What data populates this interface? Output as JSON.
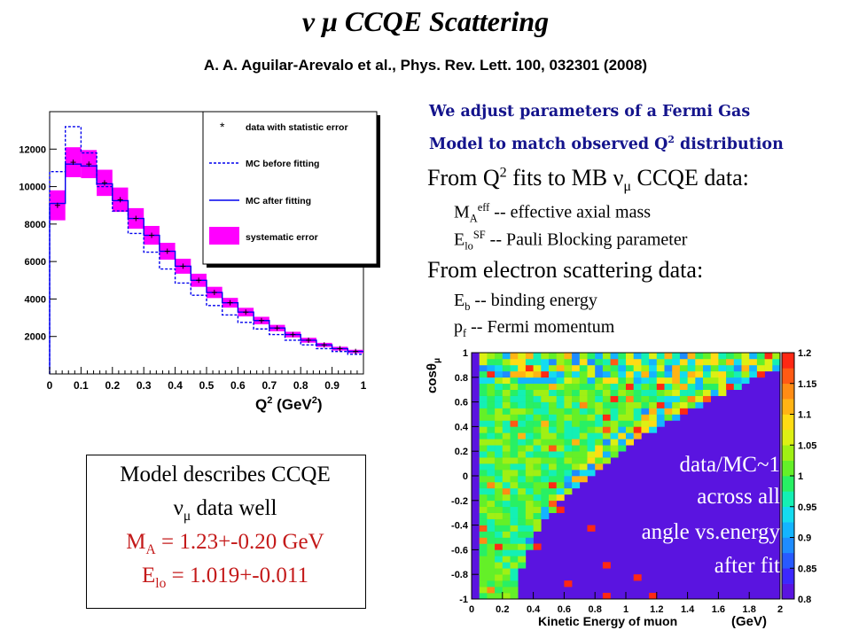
{
  "header": {
    "title": "ν μ CCQE Scattering",
    "reference": "A. A. Aguilar-Arevalo et al., Phys. Rev. Lett. 100, 032301 (2008)"
  },
  "text_panel": {
    "intro_line1": "We adjust parameters of a Fermi Gas",
    "intro_line2_pre": "Model to match observed Q",
    "intro_line2_sup": "2",
    "intro_line2_post": " distribution",
    "fits_pre": "From Q",
    "fits_sup": "2",
    "fits_mid": " fits to MB ν",
    "fits_sub": "μ",
    "fits_post": " CCQE data:",
    "ma_sym": "M",
    "ma_sub": "A",
    "ma_sup": "eff",
    "ma_desc": " -- effective axial mass",
    "elo_sym": "E",
    "elo_sub": "lo",
    "elo_sup": "SF",
    "elo_desc": " -- Pauli Blocking parameter",
    "electron_heading": "From electron scattering data:",
    "eb_sym": "E",
    "eb_sub": "b",
    "eb_desc": " -- binding energy",
    "pf_sym": "p",
    "pf_sub": "f",
    "pf_desc": " -- Fermi momentum"
  },
  "model_box": {
    "line1": "Model describes CCQE",
    "line2_pre": "ν",
    "line2_sub": "μ",
    "line2_post": " data well",
    "ma_sym": "M",
    "ma_sub": "A",
    "ma_value": " = 1.23+-0.20 GeV",
    "elo_sym": "E",
    "elo_sub": "lo",
    "elo_value": " = 1.019+-0.011"
  },
  "heatmap_overlay": {
    "line1": "data/MC~1",
    "line2": "across all",
    "line3": "angle vs.energy",
    "line4": "after fit"
  },
  "colors": {
    "intro_text": "#14148c",
    "model_values": "#c41a1a",
    "mc_line": "#0000ee",
    "systematic_band": "#ff00ff",
    "heatmap_background": "#5a14e0"
  },
  "chart_data": [
    {
      "type": "bar",
      "xlabel_main": "Q",
      "xlabel_sup": "2",
      "xlabel_unit": " (GeV",
      "xlabel_unit_sup": "2",
      "xlabel_close": ")",
      "ylabel": "",
      "xlim": [
        0,
        1
      ],
      "ylim": [
        0,
        14000
      ],
      "x_ticks": [
        "0",
        "0.1",
        "0.2",
        "0.3",
        "0.4",
        "0.5",
        "0.6",
        "0.7",
        "0.8",
        "0.9",
        "1"
      ],
      "y_ticks": [
        "2000",
        "4000",
        "6000",
        "8000",
        "10000",
        "12000"
      ],
      "legend": [
        "data with statistic error",
        "MC before fitting",
        "MC after fitting",
        "systematic error"
      ],
      "legend_placement": "top-right",
      "x": [
        0.025,
        0.075,
        0.125,
        0.175,
        0.225,
        0.275,
        0.325,
        0.375,
        0.425,
        0.475,
        0.525,
        0.575,
        0.625,
        0.675,
        0.725,
        0.775,
        0.825,
        0.875,
        0.925,
        0.975
      ],
      "series": [
        {
          "name": "data with statistic error",
          "values": [
            9000,
            11300,
            11200,
            10200,
            9300,
            8300,
            7400,
            6550,
            5750,
            5000,
            4350,
            3800,
            3300,
            2850,
            2450,
            2100,
            1800,
            1550,
            1350,
            1200
          ]
        },
        {
          "name": "MC before fitting",
          "values": [
            10800,
            13200,
            11800,
            10000,
            8700,
            7500,
            6500,
            5600,
            4850,
            4200,
            3650,
            3150,
            2750,
            2400,
            2100,
            1800,
            1550,
            1350,
            1200,
            1050
          ]
        },
        {
          "name": "MC after fitting",
          "values": [
            9100,
            11200,
            11100,
            10150,
            9250,
            8300,
            7400,
            6550,
            5750,
            5000,
            4350,
            3800,
            3300,
            2850,
            2450,
            2100,
            1800,
            1550,
            1350,
            1200
          ]
        },
        {
          "name": "systematic error",
          "values": [
            800,
            800,
            750,
            700,
            650,
            550,
            500,
            450,
            400,
            350,
            300,
            260,
            230,
            200,
            170,
            150,
            130,
            110,
            100,
            90
          ]
        }
      ]
    },
    {
      "type": "heatmap",
      "xlabel": "Kinetic Energy of muon",
      "xlabel_unit": "(GeV)",
      "ylabel": "cosθ",
      "ylabel_sub": "μ",
      "xlim": [
        0,
        2
      ],
      "ylim": [
        -1,
        1
      ],
      "x_ticks": [
        "0",
        "0.2",
        "0.4",
        "0.6",
        "0.8",
        "1",
        "1.2",
        "1.4",
        "1.6",
        "1.8",
        "2"
      ],
      "y_ticks": [
        "-1",
        "-0.8",
        "-0.6",
        "-0.4",
        "-0.2",
        "0",
        "0.2",
        "0.4",
        "0.6",
        "0.8",
        "1"
      ],
      "colorbar_range": [
        0.8,
        1.2
      ],
      "colorbar_ticks": [
        "0.8",
        "0.85",
        "0.9",
        "0.95",
        "1",
        "1.05",
        "1.1",
        "1.15",
        "1.2"
      ],
      "summary": "data/MC near 1 in populated region; empty high-energy/backward region at minimum color"
    }
  ]
}
